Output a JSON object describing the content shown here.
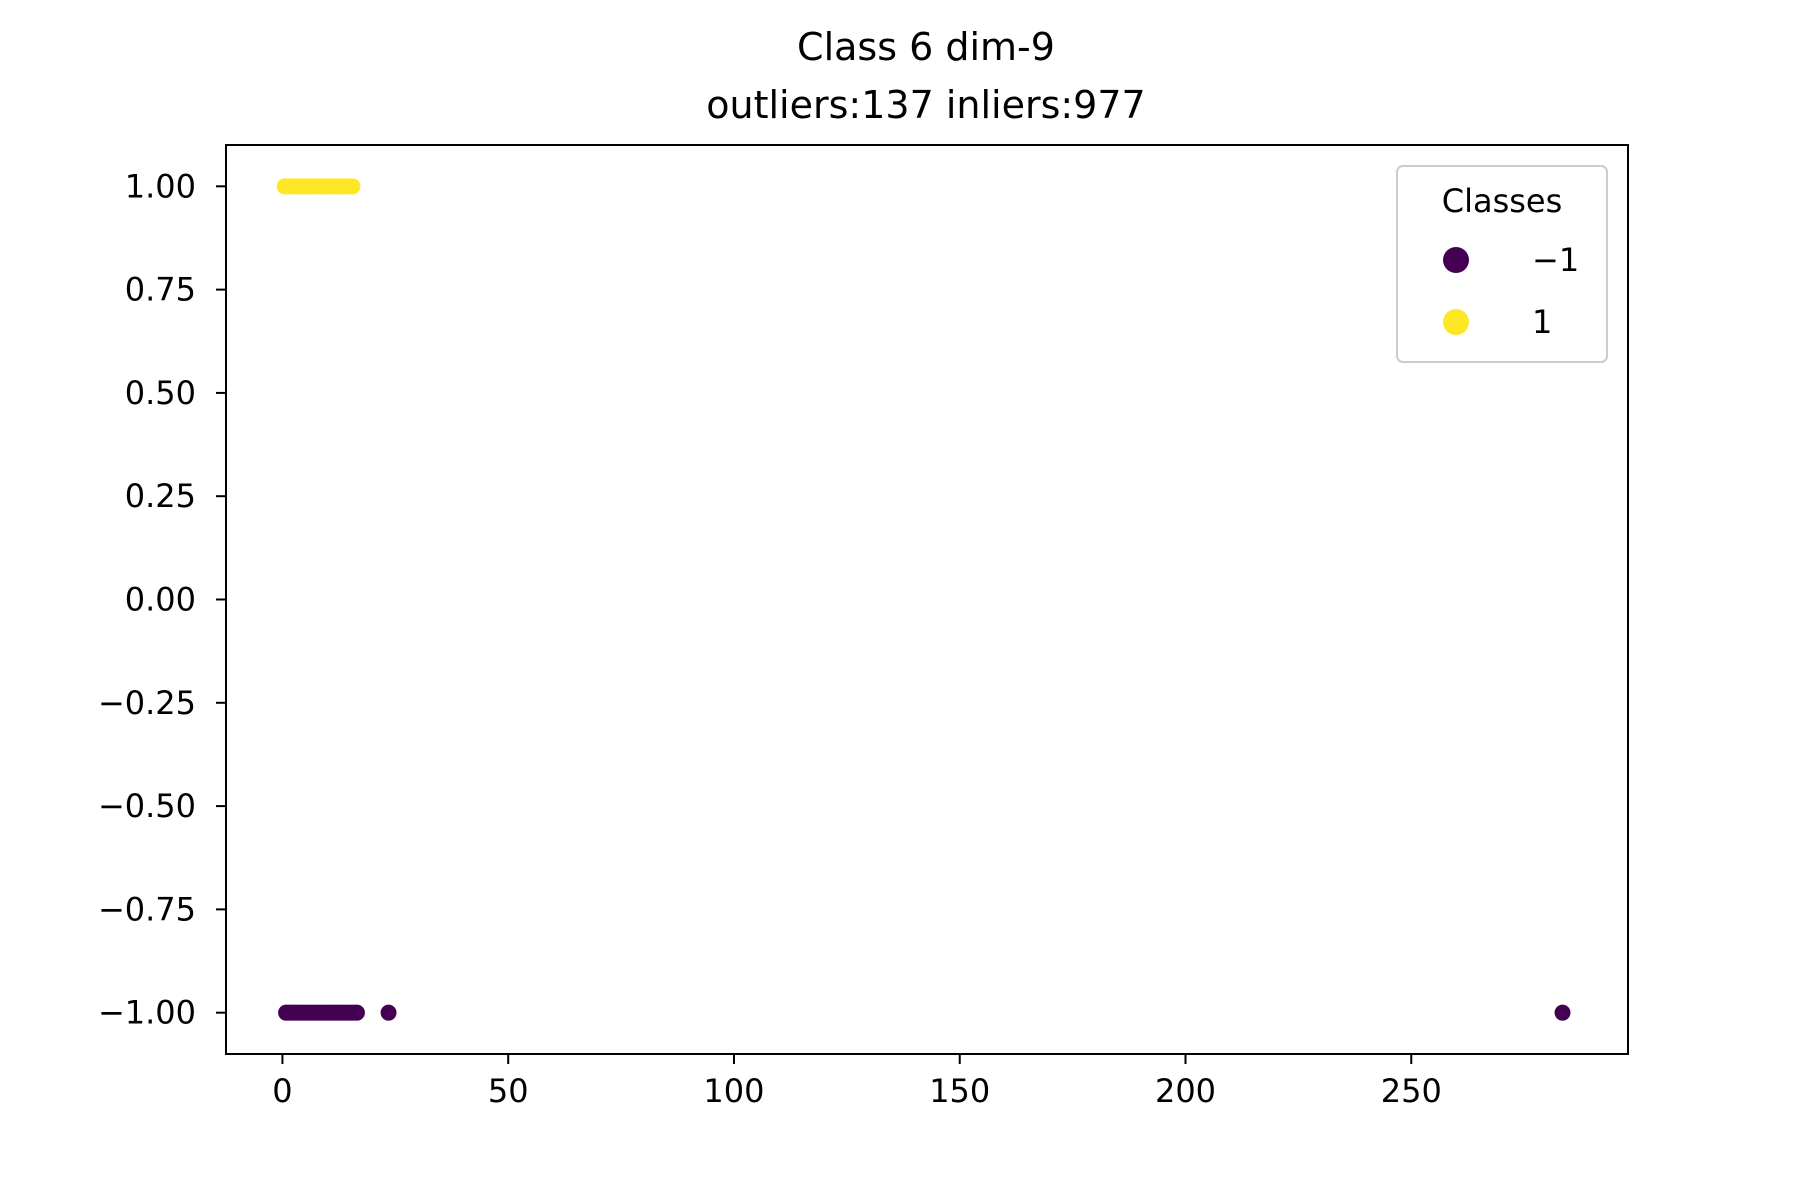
{
  "chart_data": {
    "type": "scatter",
    "title": "Class 6 dim-9",
    "subtitle": "outliers:137  inliers:977",
    "xlabel": "",
    "ylabel": "",
    "xlim": [
      -12.5,
      298
    ],
    "ylim": [
      -1.1,
      1.1
    ],
    "xticks": [
      0,
      50,
      100,
      150,
      200,
      250
    ],
    "xtick_labels": [
      "0",
      "50",
      "100",
      "150",
      "200",
      "250"
    ],
    "yticks": [
      1.0,
      0.75,
      0.5,
      0.25,
      0.0,
      -0.25,
      -0.5,
      -0.75,
      -1.0
    ],
    "ytick_labels": [
      "1.00",
      "0.75",
      "0.50",
      "0.25",
      "0.00",
      "−0.25",
      "−0.50",
      "−0.75",
      "−1.00"
    ],
    "grid": false,
    "legend": {
      "title": "Classes",
      "position": "top-right",
      "entries": [
        {
          "label": "−1",
          "color": "#440154"
        },
        {
          "label": "1",
          "color": "#fde725"
        }
      ]
    },
    "series": [
      {
        "name": "1",
        "color": "#fde725",
        "x": [
          0.5,
          1.2,
          2.0,
          2.8,
          3.5,
          4.2,
          5.0,
          5.8,
          6.5,
          7.2,
          8.0,
          8.8,
          9.5,
          10.2,
          11.0,
          11.8,
          12.5,
          13.2,
          14.0,
          14.8,
          15.5
        ],
        "y": [
          1,
          1,
          1,
          1,
          1,
          1,
          1,
          1,
          1,
          1,
          1,
          1,
          1,
          1,
          1,
          1,
          1,
          1,
          1,
          1,
          1
        ]
      },
      {
        "name": "−1",
        "color": "#440154",
        "x": [
          0.8,
          1.5,
          2.3,
          3.0,
          3.8,
          4.6,
          5.4,
          6.2,
          7.0,
          7.8,
          8.6,
          9.4,
          10.2,
          11.0,
          11.8,
          12.6,
          13.4,
          14.2,
          15.0,
          15.8,
          16.5,
          23.5,
          283.5
        ],
        "y": [
          -1,
          -1,
          -1,
          -1,
          -1,
          -1,
          -1,
          -1,
          -1,
          -1,
          -1,
          -1,
          -1,
          -1,
          -1,
          -1,
          -1,
          -1,
          -1,
          -1,
          -1,
          -1,
          -1
        ]
      }
    ]
  }
}
